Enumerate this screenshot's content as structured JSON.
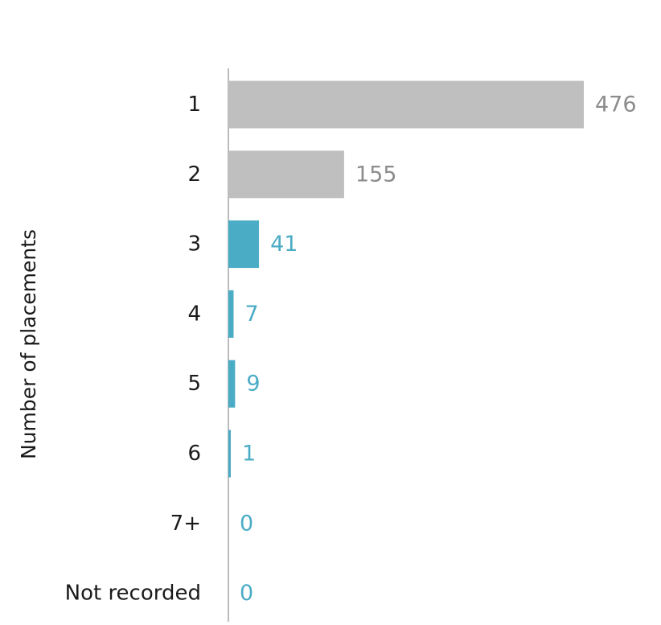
{
  "chart_data": {
    "type": "bar",
    "orientation": "horizontal",
    "title": "",
    "xlabel": "",
    "ylabel": "Number of placements",
    "categories": [
      "1",
      "2",
      "3",
      "4",
      "5",
      "6",
      "7+",
      "Not recorded"
    ],
    "values": [
      476,
      155,
      41,
      7,
      9,
      1,
      0,
      0
    ],
    "value_labels": [
      "476",
      "155",
      "41",
      "7",
      "9",
      "1",
      "0",
      "0"
    ],
    "xlim": [
      0,
      476
    ],
    "grid": false,
    "legend": "none",
    "colors": {
      "bar_gray": "#bfbfbf",
      "bar_teal": "#4bacc6",
      "label_gray": "#8c8c8c",
      "label_teal": "#4bacc6",
      "axis_line": "#a6a6a6"
    },
    "bar_color_keys": [
      "gray",
      "gray",
      "teal",
      "teal",
      "teal",
      "teal",
      "teal",
      "teal"
    ]
  }
}
